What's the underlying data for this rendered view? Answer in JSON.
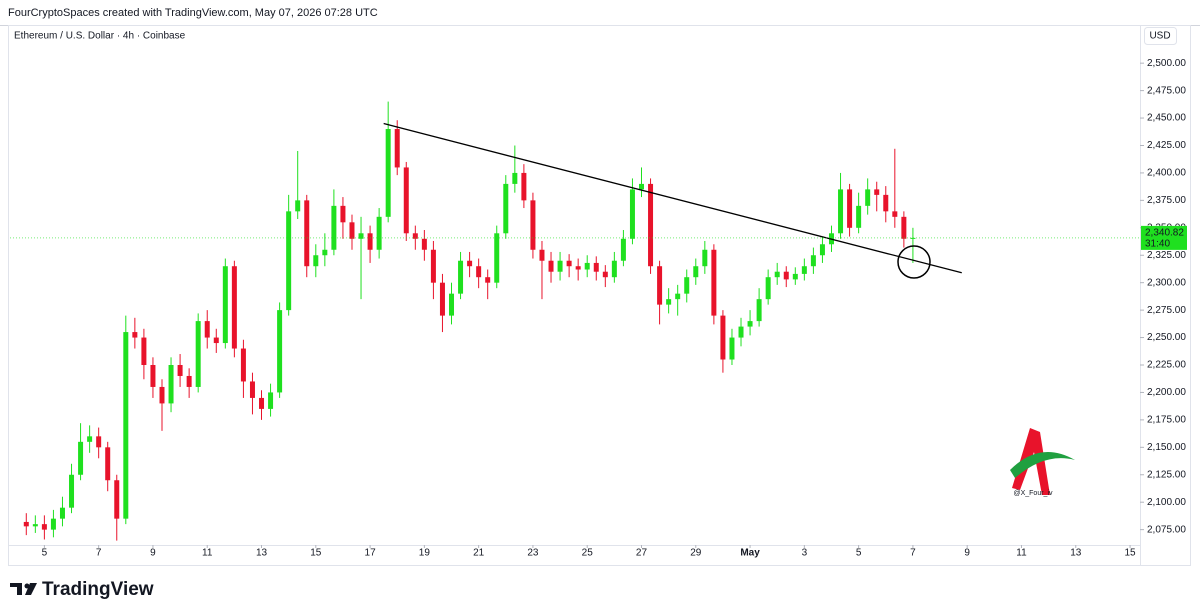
{
  "header": {
    "credit": "FourCryptoSpaces created with TradingView.com, May 07, 2026 07:28 UTC"
  },
  "chart_data": {
    "type": "candlestick",
    "title": "Ethereum / U.S. Dollar · 4h · Coinbase",
    "currency": "USD",
    "up_color": "#1fe01f",
    "down_color": "#e8132b",
    "open": [
      2082,
      2078,
      2080,
      2075,
      2085,
      2095,
      2125,
      2155,
      2160,
      2150,
      2120,
      2085,
      2255,
      2250,
      2225,
      2205,
      2190,
      2225,
      2215,
      2205,
      2265,
      2250,
      2245,
      2315,
      2240,
      2210,
      2195,
      2185,
      2200,
      2275,
      2365,
      2375,
      2315,
      2325,
      2330,
      2370,
      2355,
      2340,
      2345,
      2330,
      2360,
      2440,
      2405,
      2345,
      2340,
      2330,
      2300,
      2270,
      2290,
      2320,
      2315,
      2305,
      2300,
      2345,
      2390,
      2400,
      2375,
      2330,
      2320,
      2310,
      2320,
      2315,
      2312,
      2318,
      2310,
      2305,
      2320,
      2340,
      2385,
      2390,
      2315,
      2280,
      2285,
      2290,
      2305,
      2315,
      2330,
      2270,
      2230,
      2250,
      2260,
      2265,
      2285,
      2305,
      2310,
      2303,
      2308,
      2315,
      2325,
      2335,
      2345,
      2385,
      2350,
      2370,
      2385,
      2380,
      2365,
      2360,
      2340
    ],
    "high": [
      2090,
      2088,
      2088,
      2093,
      2105,
      2135,
      2172,
      2170,
      2168,
      2155,
      2125,
      2270,
      2268,
      2258,
      2232,
      2212,
      2232,
      2235,
      2222,
      2272,
      2275,
      2258,
      2322,
      2320,
      2248,
      2218,
      2202,
      2208,
      2282,
      2380,
      2420,
      2380,
      2335,
      2345,
      2385,
      2378,
      2362,
      2360,
      2352,
      2368,
      2465,
      2448,
      2410,
      2352,
      2348,
      2338,
      2308,
      2300,
      2328,
      2328,
      2322,
      2312,
      2352,
      2398,
      2425,
      2408,
      2382,
      2338,
      2328,
      2328,
      2326,
      2322,
      2325,
      2324,
      2316,
      2328,
      2348,
      2395,
      2405,
      2395,
      2320,
      2295,
      2298,
      2312,
      2322,
      2338,
      2335,
      2275,
      2258,
      2268,
      2275,
      2295,
      2312,
      2318,
      2315,
      2314,
      2322,
      2332,
      2342,
      2352,
      2400,
      2390,
      2382,
      2395,
      2392,
      2388,
      2422,
      2365,
      2350
    ],
    "low": [
      2070,
      2072,
      2066,
      2068,
      2078,
      2090,
      2120,
      2145,
      2140,
      2110,
      2065,
      2080,
      2240,
      2212,
      2195,
      2165,
      2182,
      2205,
      2195,
      2200,
      2240,
      2236,
      2240,
      2232,
      2195,
      2180,
      2175,
      2178,
      2195,
      2270,
      2358,
      2305,
      2305,
      2315,
      2325,
      2340,
      2330,
      2285,
      2318,
      2322,
      2355,
      2398,
      2338,
      2330,
      2320,
      2285,
      2255,
      2262,
      2285,
      2305,
      2295,
      2285,
      2295,
      2340,
      2382,
      2368,
      2322,
      2285,
      2300,
      2302,
      2305,
      2302,
      2305,
      2302,
      2296,
      2300,
      2315,
      2335,
      2378,
      2308,
      2262,
      2272,
      2270,
      2282,
      2298,
      2308,
      2262,
      2218,
      2225,
      2242,
      2252,
      2260,
      2280,
      2298,
      2296,
      2298,
      2302,
      2308,
      2318,
      2328,
      2340,
      2342,
      2345,
      2362,
      2365,
      2355,
      2350,
      2332,
      2318
    ],
    "close": [
      2078,
      2080,
      2075,
      2085,
      2095,
      2125,
      2155,
      2160,
      2150,
      2120,
      2085,
      2255,
      2250,
      2225,
      2205,
      2190,
      2225,
      2215,
      2205,
      2265,
      2250,
      2245,
      2315,
      2240,
      2210,
      2195,
      2185,
      2200,
      2275,
      2365,
      2375,
      2315,
      2325,
      2330,
      2370,
      2355,
      2340,
      2345,
      2330,
      2360,
      2440,
      2405,
      2345,
      2340,
      2330,
      2300,
      2270,
      2290,
      2320,
      2315,
      2305,
      2300,
      2345,
      2390,
      2400,
      2375,
      2330,
      2320,
      2310,
      2320,
      2315,
      2312,
      2318,
      2310,
      2305,
      2320,
      2340,
      2385,
      2390,
      2315,
      2280,
      2285,
      2290,
      2305,
      2315,
      2330,
      2270,
      2230,
      2250,
      2260,
      2265,
      2285,
      2305,
      2310,
      2303,
      2308,
      2315,
      2325,
      2335,
      2345,
      2385,
      2350,
      2370,
      2385,
      2380,
      2365,
      2360,
      2340,
      2340.82
    ],
    "last_label": "2,340.82",
    "countdown": "31:40",
    "trendline": {
      "x": [
        39.5,
        103.4
      ],
      "y": [
        2445,
        2309
      ]
    },
    "xlim": [
      -1.8,
      123.1
    ],
    "xticks": [
      {
        "value": 2,
        "label": "5"
      },
      {
        "value": 8,
        "label": "7"
      },
      {
        "value": 14,
        "label": "9"
      },
      {
        "value": 20,
        "label": "11"
      },
      {
        "value": 26,
        "label": "13"
      },
      {
        "value": 32,
        "label": "15"
      },
      {
        "value": 38,
        "label": "17"
      },
      {
        "value": 44,
        "label": "19"
      },
      {
        "value": 50,
        "label": "21"
      },
      {
        "value": 56,
        "label": "23"
      },
      {
        "value": 62,
        "label": "25"
      },
      {
        "value": 68,
        "label": "27"
      },
      {
        "value": 74,
        "label": "29"
      },
      {
        "value": 80,
        "label": "May"
      },
      {
        "value": 86,
        "label": "3"
      },
      {
        "value": 92,
        "label": "5"
      },
      {
        "value": 98,
        "label": "7"
      },
      {
        "value": 104,
        "label": "9"
      },
      {
        "value": 110,
        "label": "11"
      },
      {
        "value": 116,
        "label": "13"
      },
      {
        "value": 122,
        "label": "15"
      }
    ],
    "ylim": [
      2061,
      2512
    ],
    "yticks": [
      {
        "value": 2075,
        "label": "2,075.00"
      },
      {
        "value": 2100,
        "label": "2,100.00"
      },
      {
        "value": 2125,
        "label": "2,125.00"
      },
      {
        "value": 2150,
        "label": "2,150.00"
      },
      {
        "value": 2175,
        "label": "2,175.00"
      },
      {
        "value": 2200,
        "label": "2,200.00"
      },
      {
        "value": 2225,
        "label": "2,225.00"
      },
      {
        "value": 2250,
        "label": "2,250.00"
      },
      {
        "value": 2275,
        "label": "2,275.00"
      },
      {
        "value": 2300,
        "label": "2,300.00"
      },
      {
        "value": 2325,
        "label": "2,325.00"
      },
      {
        "value": 2350,
        "label": "2,350.00"
      },
      {
        "value": 2375,
        "label": "2,375.00"
      },
      {
        "value": 2400,
        "label": "2,400.00"
      },
      {
        "value": 2425,
        "label": "2,425.00"
      },
      {
        "value": 2450,
        "label": "2,450.00"
      },
      {
        "value": 2475,
        "label": "2,475.00"
      },
      {
        "value": 2500,
        "label": "2,500.00"
      }
    ]
  },
  "watermark": "@X_Four_iv",
  "footer": {
    "brand": "TradingView"
  }
}
